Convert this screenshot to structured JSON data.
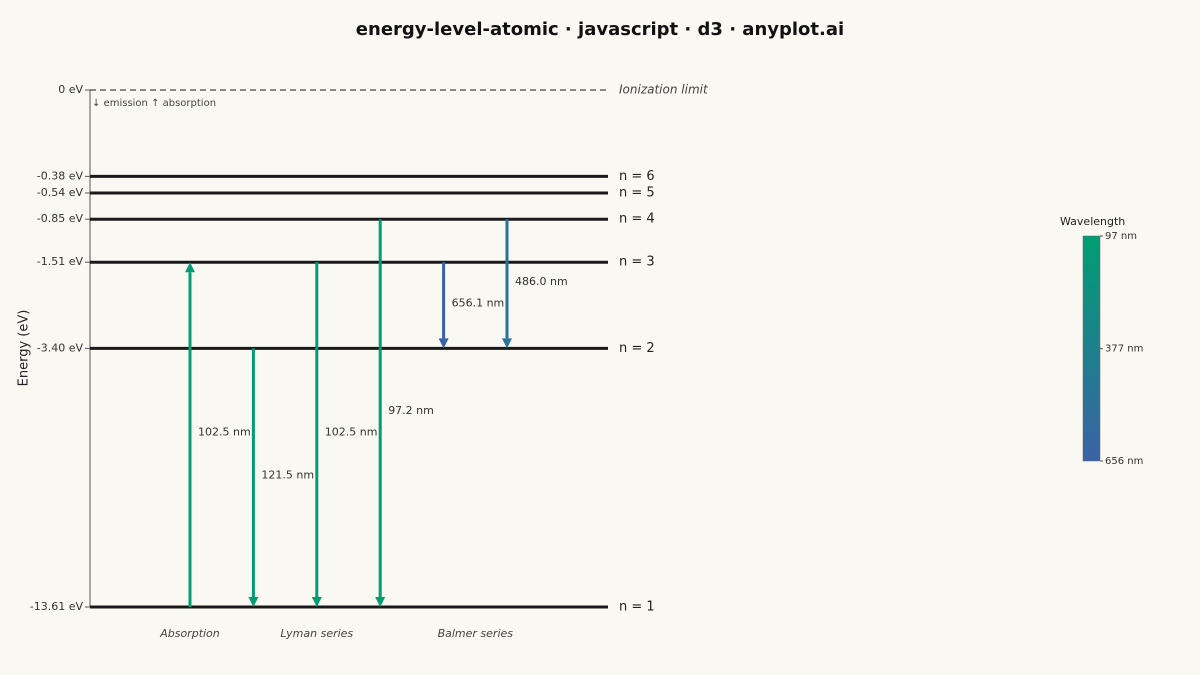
{
  "chart_data": {
    "type": "energy-level",
    "title": "energy-level-atomic · javascript · d3 · anyplot.ai",
    "ylabel": "Energy (eV)",
    "yscale": "sqrt",
    "ylim": [
      -13.61,
      0
    ],
    "yticks": [
      {
        "value": 0,
        "label": "0 eV"
      },
      {
        "value": -0.38,
        "label": "-0.38 eV"
      },
      {
        "value": -0.54,
        "label": "-0.54 eV"
      },
      {
        "value": -0.85,
        "label": "-0.85 eV"
      },
      {
        "value": -1.51,
        "label": "-1.51 eV"
      },
      {
        "value": -3.4,
        "label": "-3.40 eV"
      },
      {
        "value": -13.61,
        "label": "-13.61 eV"
      }
    ],
    "ionization": {
      "energy": 0,
      "label": "Ionization limit"
    },
    "direction_note": "↓ emission ↑ absorption",
    "levels": [
      {
        "label": "n = 1",
        "energy": -13.61
      },
      {
        "label": "n = 2",
        "energy": -3.4
      },
      {
        "label": "n = 3",
        "energy": -1.51
      },
      {
        "label": "n = 4",
        "energy": -0.85
      },
      {
        "label": "n = 5",
        "energy": -0.54
      },
      {
        "label": "n = 6",
        "energy": -0.38
      }
    ],
    "groups": [
      {
        "name": "Absorption",
        "transitions": [
          {
            "from": -13.61,
            "to": -1.51,
            "wavelength": 102.5,
            "label": "102.5 nm"
          }
        ]
      },
      {
        "name": "Lyman series",
        "transitions": [
          {
            "from": -3.4,
            "to": -13.61,
            "wavelength": 121.5,
            "label": "121.5 nm"
          },
          {
            "from": -1.51,
            "to": -13.61,
            "wavelength": 102.5,
            "label": "102.5 nm"
          },
          {
            "from": -0.85,
            "to": -13.61,
            "wavelength": 97.2,
            "label": "97.2 nm"
          }
        ]
      },
      {
        "name": "Balmer series",
        "transitions": [
          {
            "from": -1.51,
            "to": -3.4,
            "wavelength": 656.1,
            "label": "656.1 nm"
          },
          {
            "from": -0.85,
            "to": -3.4,
            "wavelength": 486.0,
            "label": "486.0 nm"
          }
        ]
      }
    ],
    "colorbar": {
      "title": "Wavelength",
      "colors": [
        "#009e73",
        "#3b62a6"
      ],
      "clim": [
        97,
        656
      ],
      "cticks": [
        {
          "value": 97,
          "label": "97 nm"
        },
        {
          "value": 377,
          "label": "377 nm"
        },
        {
          "value": 656,
          "label": "656 nm"
        }
      ]
    }
  }
}
